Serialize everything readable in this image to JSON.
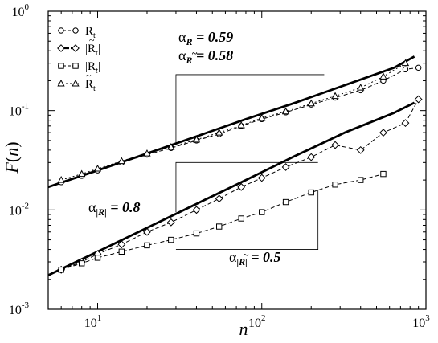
{
  "chart_data": {
    "type": "scatter",
    "xlabel": "n",
    "ylabel": "F(n)",
    "xscale": "log",
    "yscale": "log",
    "xlim": [
      5,
      1000
    ],
    "ylim": [
      0.001,
      1
    ],
    "x_ticks": [
      {
        "value": 10,
        "base": "10",
        "exp": "1"
      },
      {
        "value": 100,
        "base": "10",
        "exp": "2"
      },
      {
        "value": 1000,
        "base": "10",
        "exp": "3"
      }
    ],
    "y_ticks": [
      {
        "value": 0.001,
        "base": "10",
        "exp": "-3"
      },
      {
        "value": 0.01,
        "base": "10",
        "exp": "-2"
      },
      {
        "value": 0.1,
        "base": "10",
        "exp": "-1"
      },
      {
        "value": 1,
        "base": "10",
        "exp": "0"
      }
    ],
    "legend": {
      "placement": "top-left",
      "entries": [
        {
          "label": "R",
          "sub": "t",
          "tilde": false,
          "abs": false,
          "marker": "circle",
          "line": "dash"
        },
        {
          "label": "R",
          "sub": "t",
          "tilde": true,
          "abs": true,
          "marker": "diamond",
          "line": "thick-dash"
        },
        {
          "label": "R",
          "sub": "t",
          "tilde": false,
          "abs": true,
          "marker": "square",
          "line": "dash"
        },
        {
          "label": "R",
          "sub": "t",
          "tilde": true,
          "abs": false,
          "marker": "triangle",
          "line": "dot"
        }
      ]
    },
    "annotations": [
      {
        "text_alpha": "α",
        "sub": "R",
        "tilde": false,
        "abs": false,
        "value_text": " = 0.59"
      },
      {
        "text_alpha": "α",
        "sub": "R",
        "tilde": true,
        "abs": false,
        "value_text": " = 0.58"
      },
      {
        "text_alpha": "α",
        "sub": "R",
        "tilde": false,
        "abs": true,
        "value_text": " = 0.8"
      },
      {
        "text_alpha": "α",
        "sub": "R",
        "tilde": true,
        "abs": true,
        "value_text": " = 0.5"
      }
    ],
    "series": [
      {
        "name": "R_t",
        "marker": "circle",
        "x": [
          6,
          8,
          10,
          14,
          20,
          28,
          40,
          55,
          75,
          100,
          140,
          200,
          280,
          400,
          550,
          750,
          900
        ],
        "y": [
          0.019,
          0.022,
          0.025,
          0.03,
          0.036,
          0.042,
          0.05,
          0.058,
          0.07,
          0.082,
          0.096,
          0.115,
          0.135,
          0.16,
          0.2,
          0.26,
          0.27
        ]
      },
      {
        "name": "~R_t",
        "marker": "triangle",
        "x": [
          6,
          8,
          10,
          14,
          20,
          28,
          40,
          55,
          75,
          100,
          140,
          200,
          280,
          400,
          550,
          750
        ],
        "y": [
          0.02,
          0.023,
          0.026,
          0.031,
          0.037,
          0.043,
          0.051,
          0.06,
          0.071,
          0.084,
          0.098,
          0.118,
          0.14,
          0.17,
          0.22,
          0.3
        ]
      },
      {
        "name": "|~R_t|",
        "marker": "diamond",
        "x": [
          6,
          8,
          10,
          14,
          20,
          28,
          40,
          55,
          75,
          100,
          140,
          200,
          280,
          400,
          550,
          750,
          900
        ],
        "y": [
          0.0025,
          0.003,
          0.0036,
          0.0045,
          0.006,
          0.0075,
          0.01,
          0.013,
          0.017,
          0.021,
          0.027,
          0.034,
          0.045,
          0.04,
          0.06,
          0.075,
          0.13
        ]
      },
      {
        "name": "|R_t|",
        "marker": "square",
        "x": [
          6,
          8,
          10,
          14,
          20,
          28,
          40,
          55,
          75,
          100,
          140,
          200,
          280,
          400,
          550
        ],
        "y": [
          0.0025,
          0.0029,
          0.0033,
          0.0038,
          0.0044,
          0.005,
          0.0058,
          0.0068,
          0.0082,
          0.0095,
          0.012,
          0.015,
          0.018,
          0.02,
          0.023
        ]
      }
    ],
    "fit_lines": [
      {
        "name": "fit-upper",
        "x": [
          5,
          10,
          20,
          40,
          80,
          160,
          320,
          640,
          850
        ],
        "y": [
          0.017,
          0.025,
          0.037,
          0.055,
          0.082,
          0.12,
          0.18,
          0.27,
          0.35
        ]
      },
      {
        "name": "fit-lower",
        "x": [
          5,
          10,
          20,
          40,
          80,
          160,
          320,
          640,
          850
        ],
        "y": [
          0.0022,
          0.0038,
          0.0066,
          0.0115,
          0.02,
          0.035,
          0.06,
          0.095,
          0.12
        ]
      }
    ],
    "guide_lines": [
      {
        "name": "guide-upper",
        "points": [
          [
            30,
            0.045
          ],
          [
            30,
            0.23
          ],
          [
            240,
            0.23
          ]
        ]
      },
      {
        "name": "guide-mid",
        "points": [
          [
            30,
            0.0095
          ],
          [
            30,
            0.03
          ],
          [
            220,
            0.03
          ]
        ]
      },
      {
        "name": "guide-lower",
        "points": [
          [
            30,
            0.004
          ],
          [
            220,
            0.004
          ],
          [
            220,
            0.016
          ]
        ]
      }
    ]
  }
}
